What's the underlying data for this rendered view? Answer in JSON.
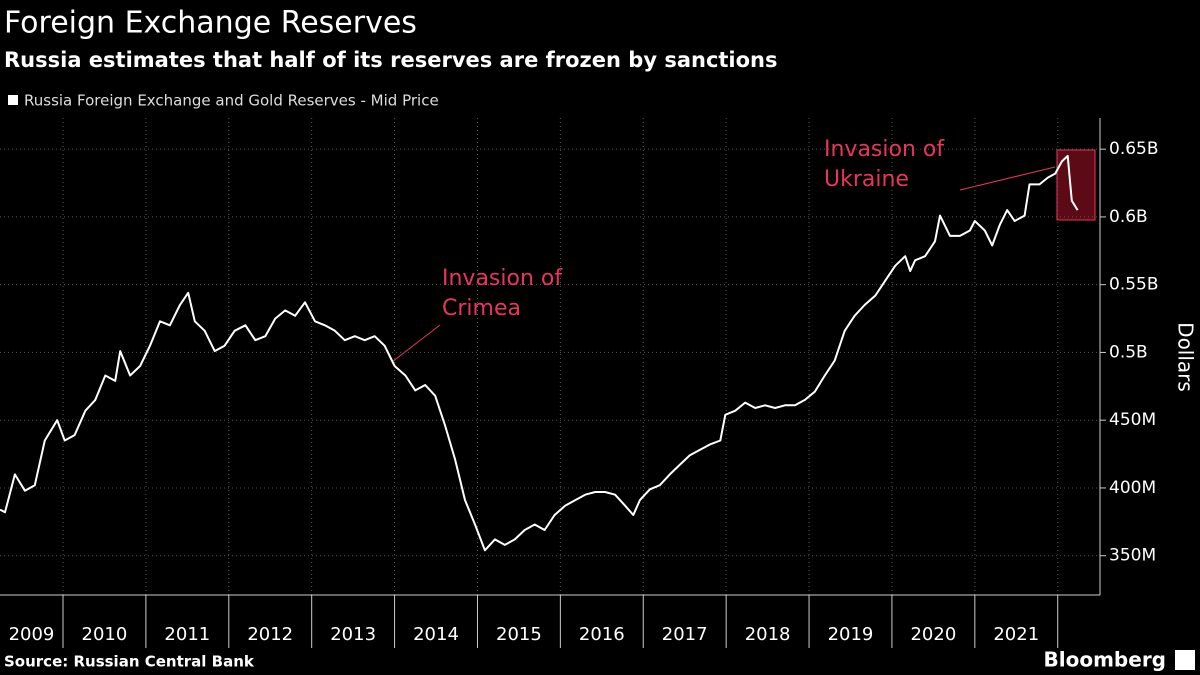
{
  "chart_data": {
    "type": "line",
    "title": "Foreign Exchange Reserves",
    "subtitle": "Russia estimates that half of its reserves are frozen by sanctions",
    "y_label": "Dollars",
    "source": "Source: Russian Central Bank",
    "brand": "Bloomberg",
    "x": [
      2009.24,
      2009.3,
      2009.42,
      2009.54,
      2009.66,
      2009.78,
      2009.93,
      2010.02,
      2010.14,
      2010.27,
      2010.39,
      2010.51,
      2010.63,
      2010.69,
      2010.81,
      2010.93,
      2011.05,
      2011.17,
      2011.29,
      2011.41,
      2011.51,
      2011.59,
      2011.71,
      2011.83,
      2011.95,
      2012.07,
      2012.2,
      2012.32,
      2012.44,
      2012.56,
      2012.68,
      2012.8,
      2012.92,
      2013.04,
      2013.16,
      2013.28,
      2013.4,
      2013.52,
      2013.64,
      2013.76,
      2013.88,
      2014.0,
      2014.13,
      2014.25,
      2014.37,
      2014.49,
      2014.61,
      2014.73,
      2014.85,
      2014.97,
      2015.09,
      2015.21,
      2015.33,
      2015.45,
      2015.57,
      2015.69,
      2015.81,
      2015.93,
      2016.06,
      2016.18,
      2016.3,
      2016.42,
      2016.54,
      2016.66,
      2016.78,
      2016.88,
      2016.96,
      2017.08,
      2017.2,
      2017.32,
      2017.44,
      2017.56,
      2017.68,
      2017.8,
      2017.93,
      2017.99,
      2018.11,
      2018.23,
      2018.35,
      2018.47,
      2018.59,
      2018.71,
      2018.83,
      2018.95,
      2019.07,
      2019.19,
      2019.31,
      2019.43,
      2019.55,
      2019.67,
      2019.8,
      2019.92,
      2020.04,
      2020.16,
      2020.22,
      2020.28,
      2020.4,
      2020.52,
      2020.58,
      2020.7,
      2020.82,
      2020.94,
      2021.0,
      2021.12,
      2021.21,
      2021.3,
      2021.39,
      2021.48,
      2021.6,
      2021.66,
      2021.78,
      2021.88,
      2021.97,
      2022.05,
      2022.12,
      2022.17,
      2022.24
    ],
    "series": [
      {
        "name": "Russia Foreign Exchange and Gold Reserves - Mid Price",
        "color": "#ffffff",
        "values": [
          384000000,
          382000000,
          410000000,
          398000000,
          402000000,
          435000000,
          450000000,
          435000000,
          439000000,
          457000000,
          465000000,
          483000000,
          479000000,
          501000000,
          483000000,
          490000000,
          505000000,
          523000000,
          520000000,
          535000000,
          544000000,
          523000000,
          516000000,
          501000000,
          505000000,
          516000000,
          520000000,
          509000000,
          512000000,
          525000000,
          531000000,
          527000000,
          537000000,
          523000000,
          520000000,
          516000000,
          509000000,
          512000000,
          509000000,
          512000000,
          505000000,
          490000000,
          483000000,
          472000000,
          476000000,
          468000000,
          446000000,
          421000000,
          391000000,
          373000000,
          354000000,
          362000000,
          358000000,
          362000000,
          369000000,
          373000000,
          369000000,
          380000000,
          387000000,
          391000000,
          395000000,
          397000000,
          397000000,
          395000000,
          387000000,
          380000000,
          391000000,
          399000000,
          402000000,
          410000000,
          417000000,
          424000000,
          428000000,
          432000000,
          435000000,
          454000000,
          457000000,
          463000000,
          459000000,
          461000000,
          459000000,
          461000000,
          461000000,
          465000000,
          471000000,
          483000000,
          494000000,
          516000000,
          527000000,
          535000000,
          542000000,
          553000000,
          564000000,
          571000000,
          560000000,
          568000000,
          571000000,
          582000000,
          601000000,
          586000000,
          586000000,
          590000000,
          597000000,
          590000000,
          579000000,
          594000000,
          605000000,
          597000000,
          601000000,
          624000000,
          624000000,
          629000000,
          632000000,
          641000000,
          645000000,
          612000000,
          605000000
        ]
      }
    ],
    "xlim": [
      2009.24,
      2022.51
    ],
    "xticks": [
      2009,
      2010,
      2011,
      2012,
      2013,
      2014,
      2015,
      2016,
      2017,
      2018,
      2019,
      2020,
      2021
    ],
    "ylim": [
      321000000,
      673000000
    ],
    "yticks": [
      {
        "value": 350000000,
        "label": "350M"
      },
      {
        "value": 400000000,
        "label": "400M"
      },
      {
        "value": 450000000,
        "label": "450M"
      },
      {
        "value": 500000000,
        "label": "0.5B"
      },
      {
        "value": 550000000,
        "label": "0.55B"
      },
      {
        "value": 600000000,
        "label": "0.6B"
      },
      {
        "value": 650000000,
        "label": "0.65B"
      }
    ],
    "grid": true,
    "annotations": [
      {
        "text": [
          "Invasion of",
          "Crimea"
        ],
        "color": "#e8365a"
      },
      {
        "text": [
          "Invasion of",
          "Ukraine"
        ],
        "color": "#e8365a"
      }
    ]
  }
}
